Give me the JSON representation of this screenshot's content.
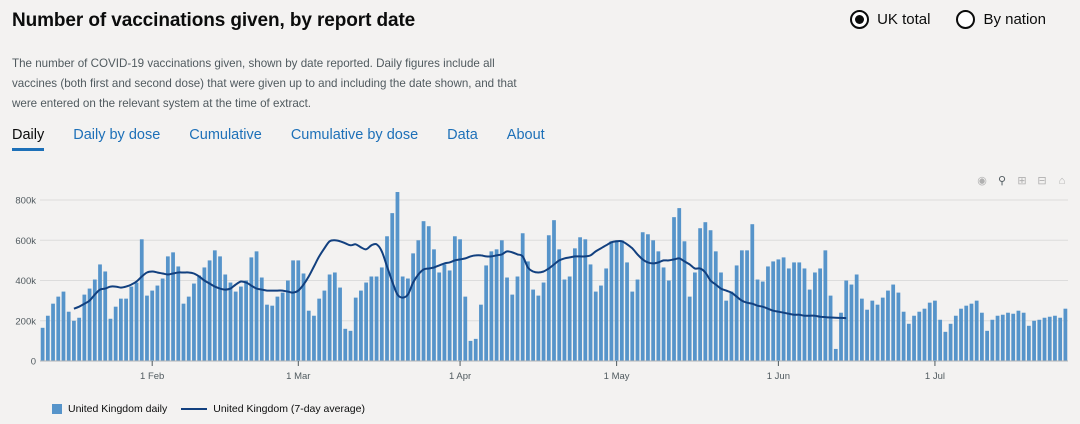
{
  "header": {
    "title": "Number of vaccinations given, by report date",
    "description": "The number of COVID-19 vaccinations given, shown by date reported. Daily figures include all vaccines (both first and second dose) that were given up to and including the date shown, and that were entered on the relevant system at the time of extract."
  },
  "radios": [
    {
      "label": "UK total",
      "checked": true
    },
    {
      "label": "By nation",
      "checked": false
    }
  ],
  "tabs": [
    {
      "label": "Daily",
      "active": true
    },
    {
      "label": "Daily by dose",
      "active": false
    },
    {
      "label": "Cumulative",
      "active": false
    },
    {
      "label": "Cumulative by dose",
      "active": false
    },
    {
      "label": "Data",
      "active": false
    },
    {
      "label": "About",
      "active": false
    }
  ],
  "modebar_icons": [
    "camera-icon",
    "zoom-icon",
    "zoom-in-icon",
    "zoom-out-icon",
    "home-icon"
  ],
  "colors": {
    "bar": "#5694ca",
    "line": "#12407f",
    "link": "#1d70b8"
  },
  "chart_data": {
    "type": "bar",
    "x_start": "2021-01-11",
    "ylim": [
      0,
      850000
    ],
    "yticks": [
      0,
      200000,
      400000,
      600000,
      800000
    ],
    "ytick_labels": [
      "0",
      "200k",
      "400k",
      "600k",
      "800k"
    ],
    "xticks": [
      {
        "date": "2021-02-01",
        "label": "1 Feb"
      },
      {
        "date": "2021-03-01",
        "label": "1 Mar"
      },
      {
        "date": "2021-04-01",
        "label": "1 Apr"
      },
      {
        "date": "2021-05-01",
        "label": "1 May"
      },
      {
        "date": "2021-06-01",
        "label": "1 Jun"
      },
      {
        "date": "2021-07-01",
        "label": "1 Jul"
      }
    ],
    "series": [
      {
        "name": "United Kingdom daily",
        "kind": "bar",
        "values": [
          165000,
          225000,
          285000,
          320000,
          345000,
          245000,
          200000,
          215000,
          330000,
          360000,
          405000,
          480000,
          445000,
          210000,
          270000,
          310000,
          310000,
          370000,
          390000,
          605000,
          325000,
          350000,
          375000,
          410000,
          520000,
          540000,
          470000,
          285000,
          320000,
          385000,
          425000,
          465000,
          500000,
          550000,
          520000,
          430000,
          390000,
          345000,
          370000,
          400000,
          515000,
          545000,
          415000,
          280000,
          275000,
          320000,
          340000,
          400000,
          500000,
          500000,
          435000,
          250000,
          225000,
          310000,
          350000,
          430000,
          440000,
          365000,
          160000,
          150000,
          315000,
          350000,
          390000,
          420000,
          420000,
          465000,
          620000,
          735000,
          840000,
          420000,
          410000,
          535000,
          600000,
          695000,
          670000,
          555000,
          440000,
          480000,
          450000,
          620000,
          605000,
          320000,
          100000,
          110000,
          280000,
          475000,
          545000,
          555000,
          600000,
          415000,
          330000,
          420000,
          635000,
          495000,
          355000,
          325000,
          390000,
          625000,
          700000,
          555000,
          405000,
          420000,
          560000,
          615000,
          605000,
          480000,
          345000,
          375000,
          460000,
          595000,
          600000,
          600000,
          490000,
          345000,
          405000,
          640000,
          630000,
          600000,
          545000,
          465000,
          400000,
          715000,
          760000,
          595000,
          320000,
          440000,
          660000,
          690000,
          650000,
          545000,
          440000,
          300000,
          345000,
          475000,
          550000,
          550000,
          680000,
          405000,
          395000,
          470000,
          495000,
          505000,
          515000,
          460000,
          490000,
          490000,
          460000,
          355000,
          440000,
          460000,
          550000,
          325000,
          60000,
          240000,
          400000,
          380000,
          430000,
          310000,
          255000,
          300000,
          280000,
          315000,
          350000,
          380000,
          340000,
          245000,
          185000,
          225000,
          245000,
          260000,
          290000,
          300000,
          205000,
          145000,
          185000,
          225000,
          260000,
          275000,
          285000,
          300000,
          240000,
          150000,
          205000,
          225000,
          230000,
          240000,
          235000,
          250000,
          240000,
          175000,
          200000,
          205000,
          215000,
          220000,
          225000,
          215000,
          260000
        ]
      },
      {
        "name": "United Kingdom (7-day average)",
        "kind": "line",
        "start_index": 6,
        "values": [
          260000,
          270000,
          285000,
          300000,
          330000,
          355000,
          360000,
          370000,
          370000,
          365000,
          370000,
          380000,
          395000,
          420000,
          440000,
          445000,
          440000,
          435000,
          430000,
          435000,
          440000,
          440000,
          440000,
          435000,
          420000,
          400000,
          385000,
          370000,
          360000,
          355000,
          360000,
          380000,
          395000,
          390000,
          375000,
          360000,
          355000,
          350000,
          350000,
          350000,
          350000,
          345000,
          340000,
          350000,
          380000,
          420000,
          470000,
          520000,
          560000,
          595000,
          600000,
          595000,
          585000,
          575000,
          580000,
          565000,
          555000,
          575000,
          580000,
          545000,
          470000,
          395000,
          330000,
          315000,
          330000,
          390000,
          430000,
          455000,
          460000,
          465000,
          475000,
          485000,
          490000,
          500000,
          505000,
          510000,
          520000,
          525000,
          525000,
          520000,
          520000,
          525000,
          530000,
          545000,
          540000,
          530000,
          520000,
          465000,
          445000,
          440000,
          445000,
          460000,
          480000,
          500000,
          510000,
          515000,
          520000,
          520000,
          520000,
          525000,
          545000,
          560000,
          575000,
          590000,
          595000,
          595000,
          580000,
          560000,
          530000,
          505000,
          490000,
          485000,
          490000,
          500000,
          500000,
          505000,
          510000,
          495000,
          480000,
          460000,
          460000,
          440000,
          400000,
          380000,
          360000,
          350000,
          340000,
          320000,
          300000,
          290000,
          285000,
          275000,
          270000,
          260000,
          250000,
          245000,
          240000,
          235000,
          230000,
          230000,
          225000,
          225000,
          225000,
          220000,
          218000,
          216000,
          215000,
          214000,
          213000
        ]
      }
    ],
    "legend": "bottom-left",
    "grid": true
  }
}
